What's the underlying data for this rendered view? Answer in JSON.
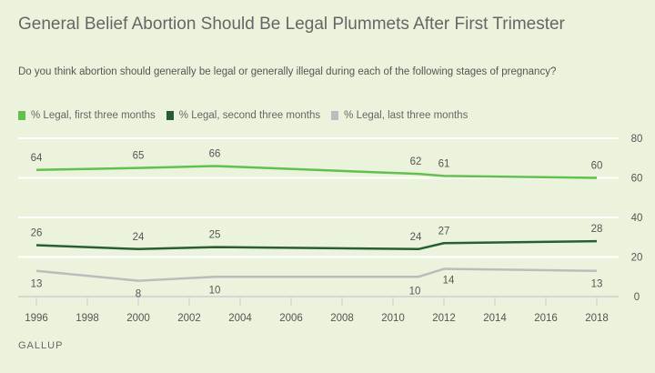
{
  "title": "General Belief Abortion Should Be Legal Plummets After First Trimester",
  "subtitle": "Do you think abortion should generally be legal or generally illegal during each of the following stages of pregnancy?",
  "source": "GALLUP",
  "chart_data": {
    "type": "line",
    "x": [
      1996,
      2000,
      2003,
      2011,
      2012,
      2018
    ],
    "series": [
      {
        "name": "% Legal, first three months",
        "color": "#62c050",
        "values": [
          64,
          65,
          66,
          62,
          61,
          60
        ],
        "label_pos": "above"
      },
      {
        "name": "% Legal, second three months",
        "color": "#285e35",
        "values": [
          26,
          24,
          25,
          24,
          27,
          28
        ],
        "label_pos": "above"
      },
      {
        "name": "% Legal, last three months",
        "color": "#bcbcbc",
        "values": [
          13,
          8,
          10,
          10,
          14,
          13
        ],
        "label_pos": "below"
      }
    ],
    "xlim": [
      1996,
      2018
    ],
    "ylim": [
      0,
      80
    ],
    "x_ticks": [
      "1996",
      "1998",
      "2000",
      "2002",
      "2004",
      "2006",
      "2008",
      "2010",
      "2012",
      "2014",
      "2016",
      "2018"
    ],
    "y_ticks": [
      "0",
      "20",
      "40",
      "60",
      "80"
    ],
    "grid": true,
    "legend": "top-left"
  }
}
